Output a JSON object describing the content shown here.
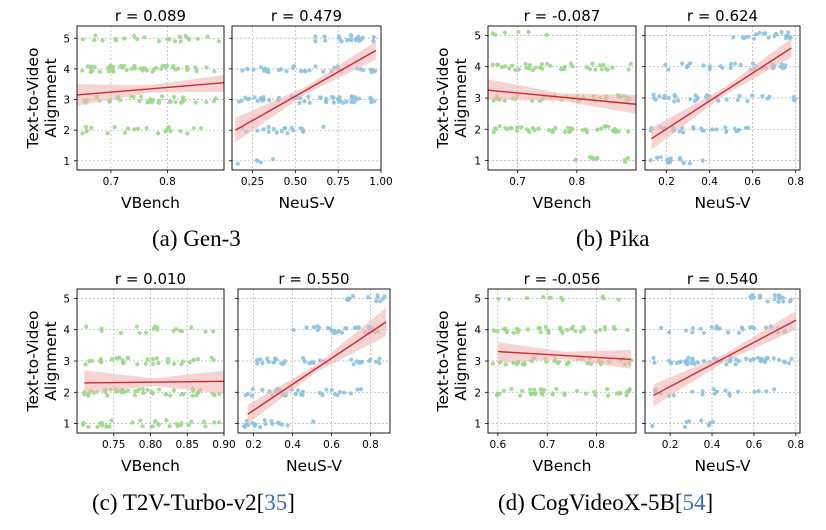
{
  "ylabel_lines": [
    "Text-to-Video",
    "Alignment"
  ],
  "colors": {
    "vbench_points": "#9bd88a",
    "neus_points": "#8cc3e0",
    "fit_line": "#d62728",
    "band": "#f4b6b6",
    "grid": "#b0b0b0"
  },
  "captions": [
    {
      "text": "(a) Gen-3",
      "ref": ""
    },
    {
      "text": "(b) Pika",
      "ref": ""
    },
    {
      "text": "(c) T2V-Turbo-v2[",
      "ref": "35",
      "close": "]"
    },
    {
      "text": "(d) CogVideoX-5B[",
      "ref": "54",
      "close": "]"
    }
  ],
  "chart_data": [
    {
      "type": "scatter",
      "panel": "a",
      "subplot": "VBench",
      "title": "r = 0.089",
      "xlabel": "VBench",
      "xlim": [
        0.64,
        0.9
      ],
      "ylim": [
        0.7,
        5.4
      ],
      "xticks": [
        0.7,
        0.8
      ],
      "xtick_labels": [
        "0.7",
        "0.8"
      ],
      "yticks": [
        1,
        2,
        3,
        4,
        5
      ],
      "ytick_labels": [
        "1",
        "2",
        "3",
        "4",
        "5"
      ],
      "fit": {
        "x": [
          0.64,
          0.9
        ],
        "y": [
          3.15,
          3.55
        ],
        "band_lo": [
          2.8,
          3.25
        ],
        "band_hi": [
          3.5,
          3.8
        ]
      },
      "point_color": "green",
      "seed": 11
    },
    {
      "type": "scatter",
      "panel": "a",
      "subplot": "NeuS-V",
      "title": "r = 0.479",
      "xlabel": "NeuS-V",
      "xlim": [
        0.13,
        1.0
      ],
      "ylim": [
        0.7,
        5.4
      ],
      "xticks": [
        0.25,
        0.5,
        0.75,
        1.0
      ],
      "xtick_labels": [
        "0.25",
        "0.50",
        "0.75",
        "1.00"
      ],
      "yticks": [
        1,
        2,
        3,
        4,
        5
      ],
      "fit": {
        "x": [
          0.15,
          0.97
        ],
        "y": [
          2.0,
          4.6
        ],
        "band_lo": [
          1.6,
          4.3
        ],
        "band_hi": [
          2.4,
          4.9
        ]
      },
      "point_color": "blue",
      "seed": 12
    },
    {
      "type": "scatter",
      "panel": "b",
      "subplot": "VBench",
      "title": "r = -0.087",
      "xlabel": "VBench",
      "xlim": [
        0.65,
        0.9
      ],
      "ylim": [
        0.7,
        5.3
      ],
      "xticks": [
        0.7,
        0.8
      ],
      "xtick_labels": [
        "0.7",
        "0.8"
      ],
      "yticks": [
        1,
        2,
        3,
        4,
        5
      ],
      "ytick_labels": [
        "1",
        "2",
        "3",
        "4",
        "5"
      ],
      "fit": {
        "x": [
          0.65,
          0.9
        ],
        "y": [
          3.25,
          2.8
        ],
        "band_lo": [
          2.95,
          2.5
        ],
        "band_hi": [
          3.6,
          3.1
        ]
      },
      "point_color": "green",
      "seed": 13
    },
    {
      "type": "scatter",
      "panel": "b",
      "subplot": "NeuS-V",
      "title": "r = 0.624",
      "xlabel": "NeuS-V",
      "xlim": [
        0.1,
        0.82
      ],
      "ylim": [
        0.7,
        5.3
      ],
      "xticks": [
        0.2,
        0.4,
        0.6,
        0.8
      ],
      "xtick_labels": [
        "0.2",
        "0.4",
        "0.6",
        "0.8"
      ],
      "yticks": [
        1,
        2,
        3,
        4,
        5
      ],
      "fit": {
        "x": [
          0.13,
          0.78
        ],
        "y": [
          1.7,
          4.6
        ],
        "band_lo": [
          1.35,
          4.3
        ],
        "band_hi": [
          2.05,
          4.9
        ]
      },
      "point_color": "blue",
      "seed": 14
    },
    {
      "type": "scatter",
      "panel": "c",
      "subplot": "VBench",
      "title": "r = 0.010",
      "xlabel": "VBench",
      "xlim": [
        0.7,
        0.9
      ],
      "ylim": [
        0.7,
        5.3
      ],
      "xticks": [
        0.75,
        0.8,
        0.85,
        0.9
      ],
      "xtick_labels": [
        "0.75",
        "0.80",
        "0.85",
        "0.90"
      ],
      "yticks": [
        1,
        2,
        3,
        4,
        5
      ],
      "ytick_labels": [
        "1",
        "2",
        "3",
        "4",
        "5"
      ],
      "fit": {
        "x": [
          0.71,
          0.9
        ],
        "y": [
          2.3,
          2.35
        ],
        "band_lo": [
          1.95,
          1.95
        ],
        "band_hi": [
          2.7,
          2.7
        ]
      },
      "point_color": "green",
      "seed": 15
    },
    {
      "type": "scatter",
      "panel": "c",
      "subplot": "NeuS-V",
      "title": "r = 0.550",
      "xlabel": "NeuS-V",
      "xlim": [
        0.12,
        0.9
      ],
      "ylim": [
        0.7,
        5.3
      ],
      "xticks": [
        0.2,
        0.4,
        0.6,
        0.8
      ],
      "xtick_labels": [
        "0.2",
        "0.4",
        "0.6",
        "0.8"
      ],
      "yticks": [
        1,
        2,
        3,
        4,
        5
      ],
      "fit": {
        "x": [
          0.17,
          0.88
        ],
        "y": [
          1.3,
          4.25
        ],
        "band_lo": [
          1.0,
          3.8
        ],
        "band_hi": [
          1.6,
          4.7
        ]
      },
      "point_color": "blue",
      "seed": 16
    },
    {
      "type": "scatter",
      "panel": "d",
      "subplot": "VBench",
      "title": "r = -0.056",
      "xlabel": "VBench",
      "xlim": [
        0.58,
        0.88
      ],
      "ylim": [
        0.7,
        5.3
      ],
      "xticks": [
        0.6,
        0.7,
        0.8
      ],
      "xtick_labels": [
        "0.6",
        "0.7",
        "0.8"
      ],
      "yticks": [
        1,
        2,
        3,
        4,
        5
      ],
      "ytick_labels": [
        "1",
        "2",
        "3",
        "4",
        "5"
      ],
      "fit": {
        "x": [
          0.6,
          0.87
        ],
        "y": [
          3.3,
          3.05
        ],
        "band_lo": [
          2.95,
          2.75
        ],
        "band_hi": [
          3.6,
          3.35
        ]
      },
      "point_color": "green",
      "seed": 17
    },
    {
      "type": "scatter",
      "panel": "d",
      "subplot": "NeuS-V",
      "title": "r = 0.540",
      "xlabel": "NeuS-V",
      "xlim": [
        0.08,
        0.82
      ],
      "ylim": [
        0.7,
        5.3
      ],
      "xticks": [
        0.2,
        0.4,
        0.6,
        0.8
      ],
      "xtick_labels": [
        "0.2",
        "0.4",
        "0.6",
        "0.8"
      ],
      "yticks": [
        1,
        2,
        3,
        4,
        5
      ],
      "fit": {
        "x": [
          0.12,
          0.8
        ],
        "y": [
          1.9,
          4.3
        ],
        "band_lo": [
          1.55,
          4.0
        ],
        "band_hi": [
          2.25,
          4.6
        ]
      },
      "point_color": "blue",
      "seed": 18
    }
  ]
}
